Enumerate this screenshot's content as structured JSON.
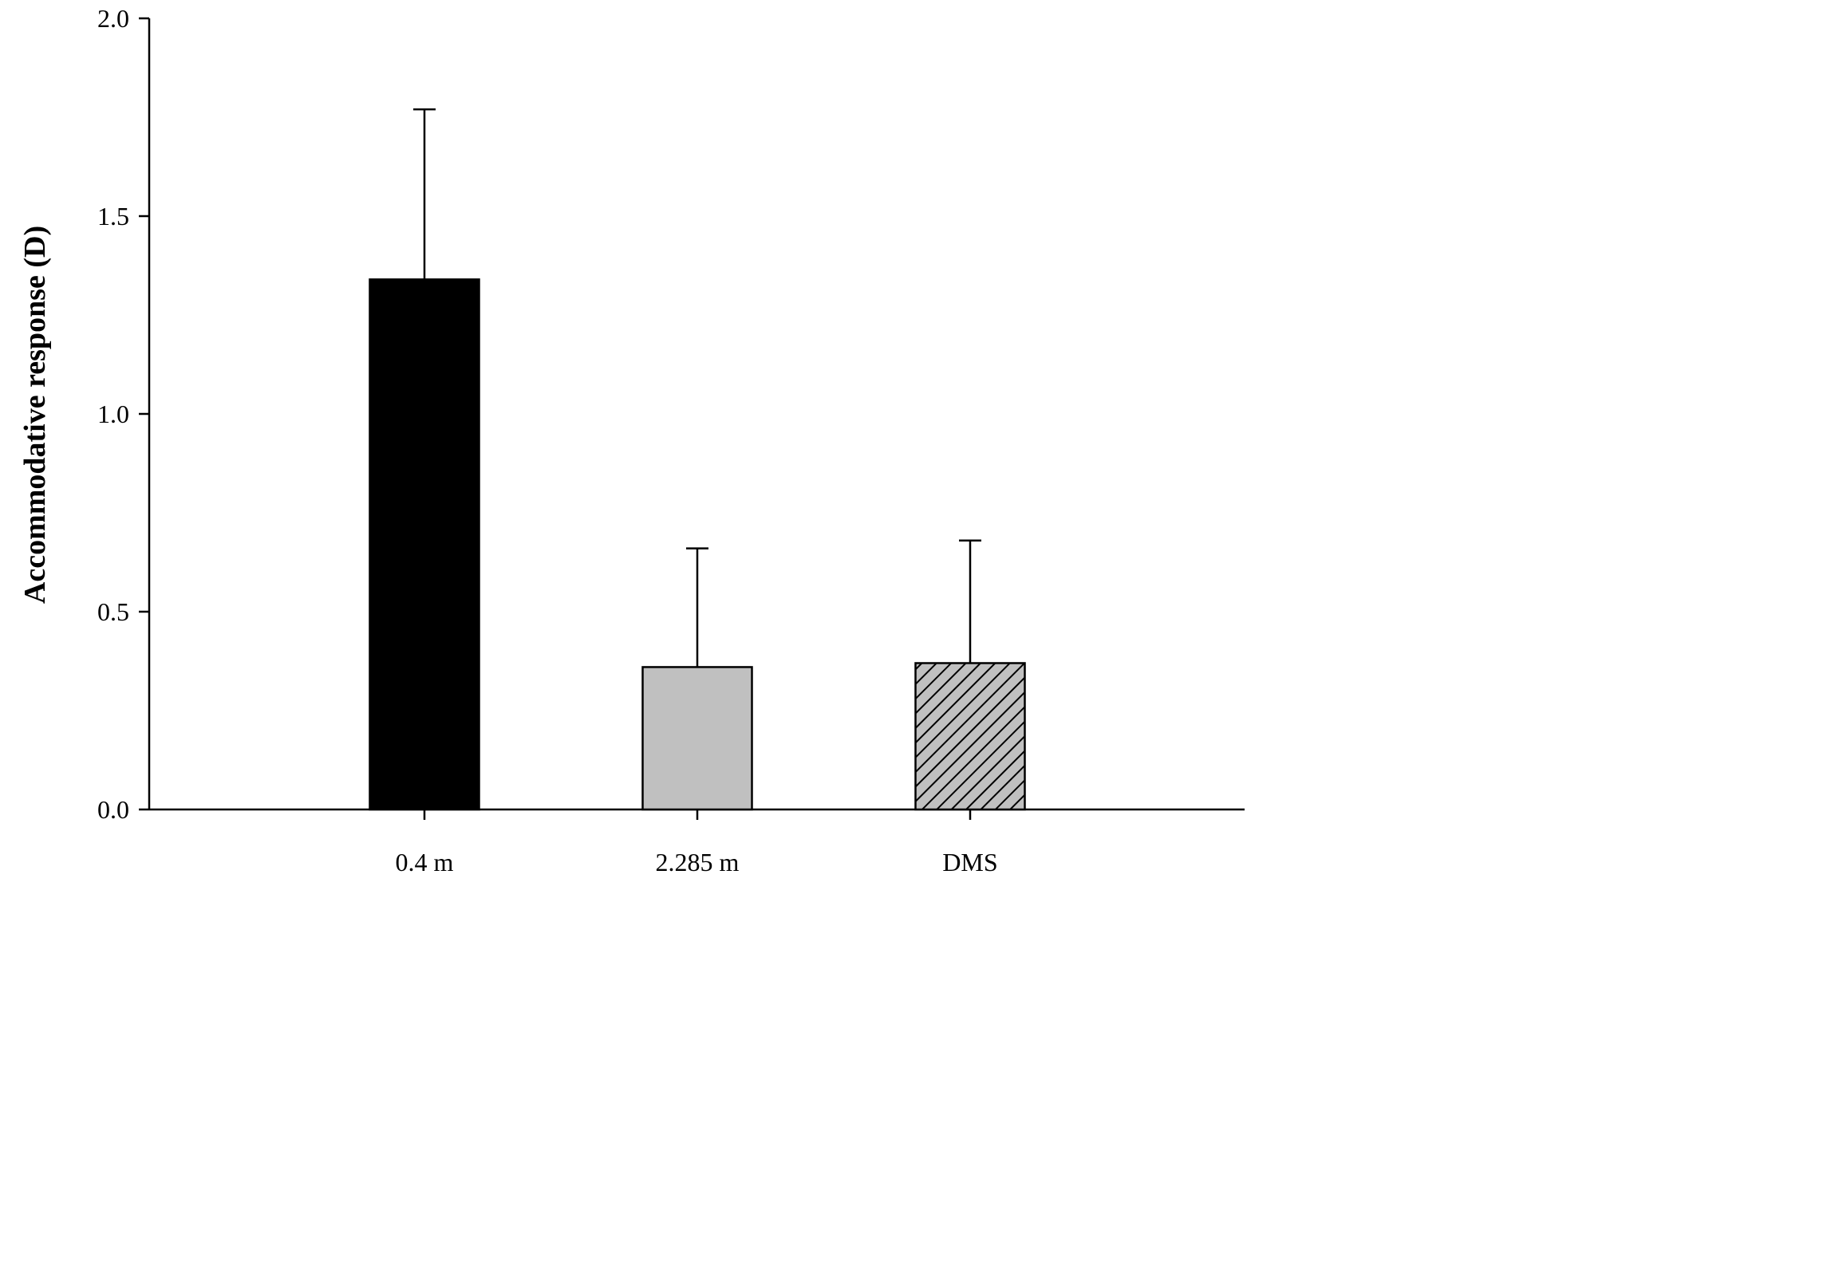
{
  "chart_data": {
    "type": "bar",
    "title": "",
    "xlabel": "",
    "ylabel": "Accommodative response (D)",
    "ylim": [
      0,
      2.0
    ],
    "yticks": [
      0.0,
      0.5,
      1.0,
      1.5,
      2.0
    ],
    "ytick_labels": [
      "0.0",
      "0.5",
      "1.0",
      "1.5",
      "2.0"
    ],
    "categories": [
      "0.4 m",
      "2.285 m",
      "DMS"
    ],
    "values": [
      1.34,
      0.36,
      0.37
    ],
    "error_upper": [
      1.77,
      0.66,
      0.68
    ],
    "fills": [
      "solid-black",
      "solid-gray",
      "diagonal-hatch"
    ],
    "colors": {
      "bar_1": "#000000",
      "bar_2": "#c0c0c0",
      "bar_3_background": "#c0c0c0",
      "bar_3_hatch": "#000000",
      "axis": "#000000"
    },
    "grid": false,
    "legend": "none"
  }
}
